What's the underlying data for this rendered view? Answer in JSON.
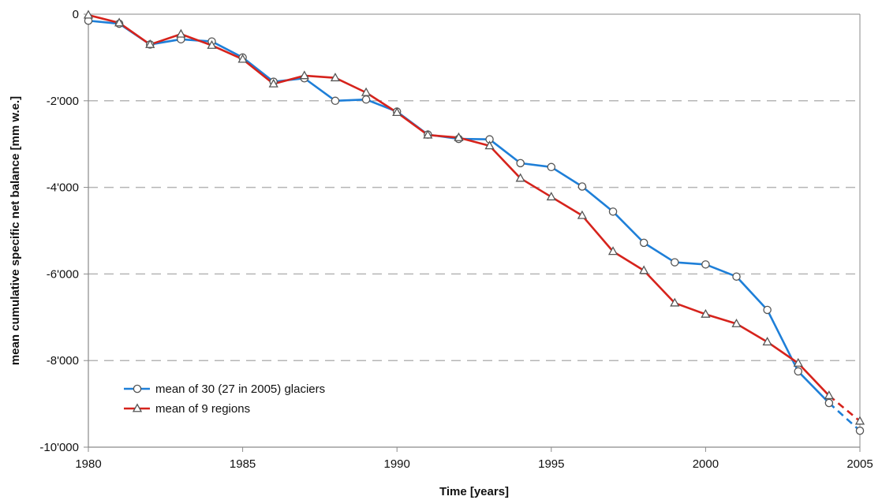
{
  "chart_data": {
    "type": "line",
    "xlabel": "Time [years]",
    "ylabel": "mean cumulative specific net balance [mm w.e.]",
    "xlim": [
      1980,
      2005
    ],
    "ylim": [
      -10000,
      0
    ],
    "xticks": [
      1980,
      1985,
      1990,
      1995,
      2000,
      2005
    ],
    "xtick_labels": [
      "1980",
      "1985",
      "1990",
      "1995",
      "2000",
      "2005"
    ],
    "yticks": [
      0,
      -2000,
      -4000,
      -6000,
      -8000,
      -10000
    ],
    "ytick_labels": [
      "0",
      "-2'000",
      "-4'000",
      "-6'000",
      "-8'000",
      "-10'000"
    ],
    "grid": "horizontal dashed",
    "legend_position": "bottom-left",
    "x": [
      1980,
      1981,
      1982,
      1983,
      1984,
      1985,
      1986,
      1987,
      1988,
      1989,
      1990,
      1991,
      1992,
      1993,
      1994,
      1995,
      1996,
      1997,
      1998,
      1999,
      2000,
      2001,
      2002,
      2003,
      2004,
      2005
    ],
    "series": [
      {
        "name": "mean of 30 (27 in 2005) glaciers",
        "color": "#1e7fd8",
        "marker": "circle",
        "dashed_last_segment": true,
        "values": [
          -150,
          -220,
          -700,
          -580,
          -630,
          -1000,
          -1560,
          -1480,
          -2000,
          -1970,
          -2250,
          -2780,
          -2880,
          -2890,
          -3440,
          -3530,
          -3980,
          -4560,
          -5280,
          -5730,
          -5780,
          -6060,
          -6830,
          -8250,
          -8980,
          -9620
        ]
      },
      {
        "name": "mean of 9 regions",
        "color": "#d6231c",
        "marker": "triangle",
        "dashed_last_segment": true,
        "values": [
          -20,
          -200,
          -700,
          -460,
          -720,
          -1040,
          -1610,
          -1420,
          -1470,
          -1810,
          -2270,
          -2790,
          -2850,
          -3040,
          -3790,
          -4220,
          -4650,
          -5480,
          -5920,
          -6670,
          -6930,
          -7150,
          -7570,
          -8060,
          -8810,
          -9400
        ]
      }
    ]
  }
}
